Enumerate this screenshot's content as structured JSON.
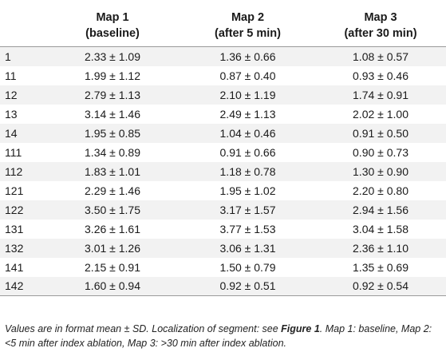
{
  "table": {
    "headers": [
      {
        "line1": "",
        "line2": ""
      },
      {
        "line1": "Map 1",
        "line2": "(baseline)"
      },
      {
        "line1": "Map 2",
        "line2": "(after 5 min)"
      },
      {
        "line1": "Map 3",
        "line2": "(after 30 min)"
      }
    ],
    "rows": [
      {
        "segment": "1",
        "map1": "2.33 ± 1.09",
        "map2": "1.36 ± 0.66",
        "map3": "1.08 ± 0.57"
      },
      {
        "segment": "11",
        "map1": "1.99 ± 1.12",
        "map2": "0.87 ± 0.40",
        "map3": "0.93 ± 0.46"
      },
      {
        "segment": "12",
        "map1": "2.79 ± 1.13",
        "map2": "2.10 ± 1.19",
        "map3": "1.74 ± 0.91"
      },
      {
        "segment": "13",
        "map1": "3.14 ± 1.46",
        "map2": "2.49 ± 1.13",
        "map3": "2.02 ± 1.00"
      },
      {
        "segment": "14",
        "map1": "1.95 ± 0.85",
        "map2": "1.04 ± 0.46",
        "map3": "0.91 ± 0.50"
      },
      {
        "segment": "111",
        "map1": "1.34 ± 0.89",
        "map2": "0.91 ± 0.66",
        "map3": "0.90 ± 0.73"
      },
      {
        "segment": "112",
        "map1": "1.83 ± 1.01",
        "map2": "1.18 ± 0.78",
        "map3": "1.30 ± 0.90"
      },
      {
        "segment": "121",
        "map1": "2.29 ± 1.46",
        "map2": "1.95 ± 1.02",
        "map3": "2.20 ± 0.80"
      },
      {
        "segment": "122",
        "map1": "3.50 ± 1.75",
        "map2": "3.17 ± 1.57",
        "map3": "2.94 ± 1.56"
      },
      {
        "segment": "131",
        "map1": "3.26 ± 1.61",
        "map2": "3.77 ± 1.53",
        "map3": "3.04 ± 1.58"
      },
      {
        "segment": "132",
        "map1": "3.01 ± 1.26",
        "map2": "3.06 ± 1.31",
        "map3": "2.36 ± 1.10"
      },
      {
        "segment": "141",
        "map1": "2.15 ± 0.91",
        "map2": "1.50 ± 0.79",
        "map3": "1.35 ± 0.69"
      },
      {
        "segment": "142",
        "map1": "1.60 ± 0.94",
        "map2": "0.92 ± 0.51",
        "map3": "0.92 ± 0.54"
      }
    ]
  },
  "footnote": {
    "part1": "Values are in format mean ± SD. Localization of segment: see ",
    "ref": "Figure 1",
    "part2": ". Map 1: baseline, Map 2: <5 min after index ablation, Map 3: >30 min after index ablation."
  },
  "colors": {
    "stripe": "#f2f2f2",
    "rule": "#9a9a9a",
    "text": "#1a1a1a"
  }
}
